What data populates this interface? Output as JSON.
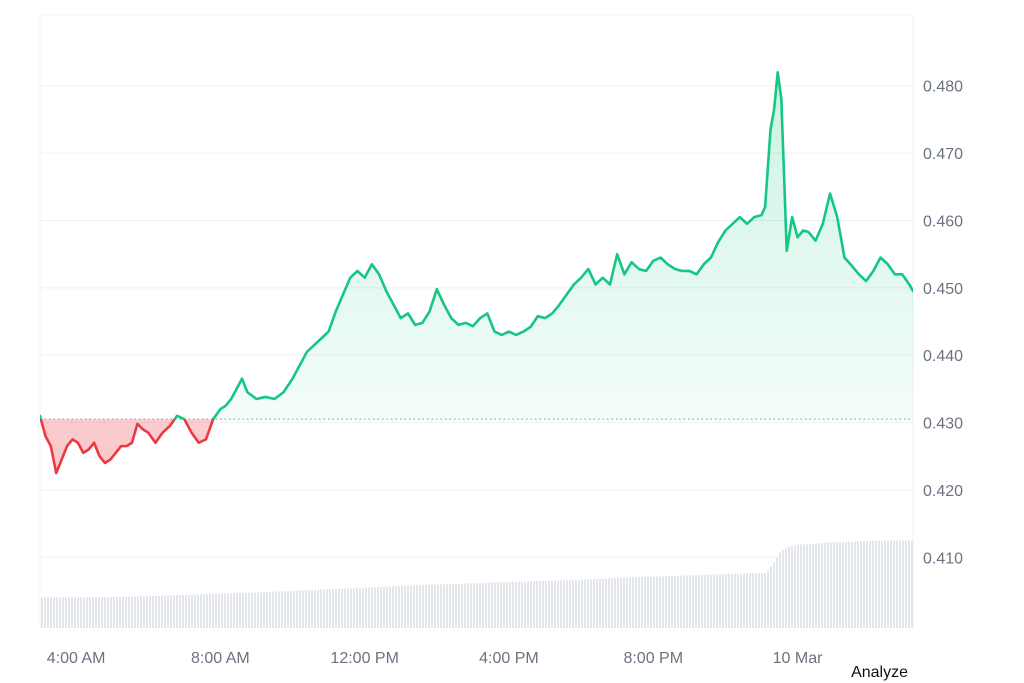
{
  "colors": {
    "up": "#16c784",
    "down": "#ea3943",
    "up_fill": "#16c784",
    "down_fill": "#ea3943",
    "grid": "#eef0f3",
    "baseline": "#8a8f98",
    "volume": "#e3e6ea",
    "axis_text": "#6b7280"
  },
  "actions": {
    "analyze_label": "Analyze"
  },
  "chart_data": {
    "type": "area",
    "baseline": 0.4305,
    "ylim": [
      0.3995,
      0.4905
    ],
    "yticks": [
      0.41,
      0.42,
      0.43,
      0.44,
      0.45,
      0.46,
      0.47,
      0.48
    ],
    "ytick_labels": [
      "0.410",
      "0.420",
      "0.430",
      "0.440",
      "0.450",
      "0.460",
      "0.470",
      "0.480"
    ],
    "xlim": [
      3.0,
      27.2
    ],
    "xticks": [
      4,
      8,
      12,
      16,
      20,
      24
    ],
    "xtick_labels": [
      "4:00 AM",
      "8:00 AM",
      "12:00 PM",
      "4:00 PM",
      "8:00 PM",
      "10 Mar"
    ],
    "grid": true,
    "x": [
      3.0,
      3.15,
      3.3,
      3.45,
      3.6,
      3.75,
      3.9,
      4.05,
      4.2,
      4.35,
      4.5,
      4.65,
      4.8,
      4.95,
      5.1,
      5.25,
      5.4,
      5.55,
      5.7,
      5.85,
      6.0,
      6.2,
      6.4,
      6.6,
      6.8,
      7.0,
      7.2,
      7.4,
      7.6,
      7.8,
      8.0,
      8.15,
      8.3,
      8.45,
      8.6,
      8.75,
      9.0,
      9.25,
      9.5,
      9.75,
      10.0,
      10.2,
      10.4,
      10.6,
      10.8,
      11.0,
      11.2,
      11.4,
      11.6,
      11.8,
      12.0,
      12.2,
      12.4,
      12.6,
      12.8,
      13.0,
      13.2,
      13.4,
      13.6,
      13.8,
      14.0,
      14.2,
      14.4,
      14.6,
      14.8,
      15.0,
      15.2,
      15.4,
      15.6,
      15.8,
      16.0,
      16.2,
      16.4,
      16.6,
      16.8,
      17.0,
      17.2,
      17.4,
      17.6,
      17.8,
      18.0,
      18.2,
      18.4,
      18.6,
      18.8,
      19.0,
      19.2,
      19.4,
      19.6,
      19.8,
      20.0,
      20.2,
      20.4,
      20.6,
      20.8,
      21.0,
      21.2,
      21.4,
      21.6,
      21.8,
      22.0,
      22.2,
      22.4,
      22.6,
      22.8,
      23.0,
      23.1,
      23.25,
      23.35,
      23.45,
      23.55,
      23.7,
      23.85,
      24.0,
      24.15,
      24.3,
      24.5,
      24.7,
      24.9,
      25.1,
      25.3,
      25.5,
      25.7,
      25.9,
      26.1,
      26.3,
      26.5,
      26.7,
      26.9,
      27.1,
      27.2
    ],
    "series": [
      {
        "values": [
          0.431,
          0.428,
          0.4265,
          0.4225,
          0.4245,
          0.4265,
          0.4275,
          0.427,
          0.4255,
          0.426,
          0.427,
          0.425,
          0.424,
          0.4245,
          0.4255,
          0.4265,
          0.4265,
          0.427,
          0.4298,
          0.429,
          0.4285,
          0.427,
          0.4285,
          0.4295,
          0.431,
          0.4305,
          0.4285,
          0.427,
          0.4275,
          0.4305,
          0.432,
          0.4325,
          0.4335,
          0.435,
          0.4365,
          0.4345,
          0.4335,
          0.4338,
          0.4335,
          0.4345,
          0.4365,
          0.4385,
          0.4405,
          0.4415,
          0.4425,
          0.4435,
          0.4465,
          0.449,
          0.4515,
          0.4525,
          0.4515,
          0.4535,
          0.452,
          0.4495,
          0.4475,
          0.4455,
          0.4462,
          0.4445,
          0.4448,
          0.4465,
          0.4498,
          0.4475,
          0.4455,
          0.4445,
          0.4448,
          0.4443,
          0.4455,
          0.4462,
          0.4435,
          0.443,
          0.4435,
          0.443,
          0.4435,
          0.4442,
          0.4458,
          0.4455,
          0.4462,
          0.4475,
          0.449,
          0.4505,
          0.4515,
          0.4528,
          0.4505,
          0.4515,
          0.4505,
          0.455,
          0.452,
          0.4538,
          0.4528,
          0.4525,
          0.454,
          0.4545,
          0.4535,
          0.4528,
          0.4525,
          0.4525,
          0.452,
          0.4535,
          0.4545,
          0.4568,
          0.4585,
          0.4595,
          0.4605,
          0.4595,
          0.4605,
          0.4608,
          0.462,
          0.4735,
          0.4765,
          0.482,
          0.478,
          0.4555,
          0.4605,
          0.4575,
          0.4585,
          0.4583,
          0.457,
          0.4595,
          0.464,
          0.4605,
          0.4545,
          0.4533,
          0.452,
          0.451,
          0.4525,
          0.4545,
          0.4535,
          0.452,
          0.452,
          0.4505,
          0.4495
        ]
      }
    ],
    "volume": {
      "x": [
        3.0,
        4.5,
        6.0,
        7.5,
        9.0,
        10.5,
        12.0,
        13.5,
        15.0,
        16.5,
        18.0,
        19.5,
        21.0,
        22.5,
        23.1,
        23.3,
        23.5,
        23.7,
        24.0,
        24.5,
        25.0,
        25.5,
        26.0,
        26.5,
        27.2
      ],
      "values": [
        0.5,
        0.5,
        0.52,
        0.55,
        0.58,
        0.62,
        0.66,
        0.7,
        0.73,
        0.76,
        0.79,
        0.83,
        0.86,
        0.89,
        0.9,
        1.05,
        1.25,
        1.32,
        1.36,
        1.38,
        1.4,
        1.41,
        1.42,
        1.43,
        1.43
      ]
    }
  }
}
